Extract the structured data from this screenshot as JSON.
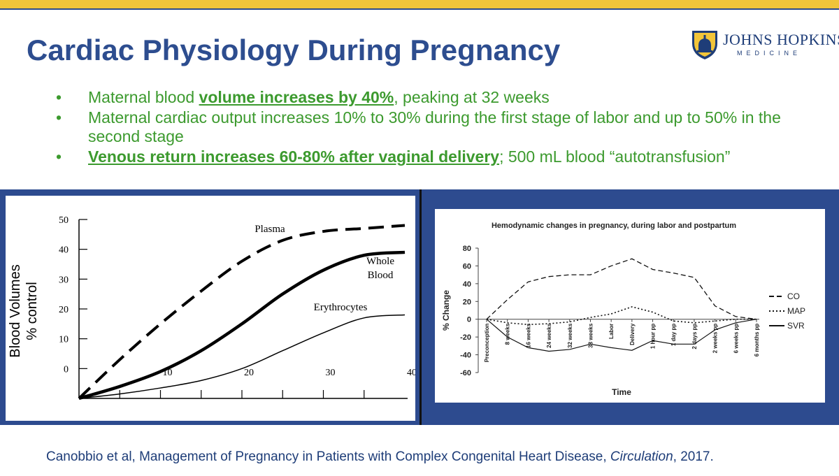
{
  "slide": {
    "title": "Cardiac Physiology During Pregnancy",
    "logo": {
      "name": "JOHNS HOPKINS",
      "subtitle": "MEDICINE"
    },
    "bullets": [
      {
        "bullet": "•",
        "pre": "Maternal blood ",
        "emph": "volume increases by 40%",
        "post": ", peaking at 32 weeks"
      },
      {
        "bullet": "•",
        "pre": "Maternal cardiac output increases 10% to 30% during the first stage of labor and up to 50% in the second stage",
        "emph": "",
        "post": ""
      },
      {
        "bullet": "•",
        "pre": "",
        "emph": "Venous return increases 60-80% after vaginal delivery",
        "post": "; 500 mL blood “autotransfusion”"
      }
    ],
    "citation": {
      "pre": "Canobbio et al, Management of Pregnancy in Patients with Complex Congenital Heart Disease, ",
      "journal": "Circulation",
      "post": ", 2017."
    }
  },
  "colors": {
    "title": "#2d4d8f",
    "bullet_text": "#3c9a2e",
    "panel": "#2d4b8f",
    "top_bar": "#f0c43a"
  },
  "chart_data": [
    {
      "type": "line",
      "title": "",
      "ylabel": "Blood Volumes % control",
      "xlabel": "",
      "xlim": [
        0,
        40
      ],
      "ylim": [
        -10,
        50
      ],
      "y_ticks": [
        0,
        10,
        20,
        30,
        40,
        50
      ],
      "x_ticks": [
        10,
        20,
        30,
        40
      ],
      "series": [
        {
          "name": "Plasma",
          "style": "dashed",
          "x": [
            0,
            5,
            10,
            15,
            20,
            25,
            30,
            35,
            40
          ],
          "values": [
            -10,
            3,
            15,
            26,
            36,
            43,
            46,
            47,
            48
          ]
        },
        {
          "name": "Whole Blood",
          "style": "thick",
          "x": [
            0,
            5,
            10,
            15,
            20,
            25,
            30,
            35,
            40
          ],
          "values": [
            -10,
            -6,
            -1,
            6,
            15,
            25,
            33,
            38,
            39
          ]
        },
        {
          "name": "Erythrocytes",
          "style": "thin",
          "x": [
            0,
            5,
            10,
            15,
            20,
            25,
            30,
            35,
            40
          ],
          "values": [
            -10,
            -8.5,
            -6.5,
            -4,
            0,
            6,
            12,
            17,
            18
          ]
        }
      ],
      "labels": {
        "plasma": "Plasma",
        "whole1": "Whole",
        "whole2": "Blood",
        "erythro": "Erythrocytes"
      }
    },
    {
      "type": "line",
      "title": "Hemodynamic changes in pregnancy, during labor and postpartum",
      "xlabel": "Time",
      "ylabel": "% Change",
      "ylim": [
        -60,
        80
      ],
      "y_ticks": [
        80,
        60,
        40,
        20,
        0,
        -20,
        -40,
        -60
      ],
      "categories": [
        "Preconception",
        "8 weeks",
        "16 weeks",
        "24 weeks",
        "32 weeks",
        "38 weeks",
        "Labor",
        "Delivery",
        "1 hour pp",
        "1 day pp",
        "2 days pp",
        "2 weeks pp",
        "6 weeks pp",
        "6 months pp"
      ],
      "series": [
        {
          "name": "CO",
          "style": "dashed",
          "values": [
            0,
            22,
            42,
            48,
            50,
            50,
            60,
            68,
            56,
            52,
            47,
            15,
            3,
            0
          ]
        },
        {
          "name": "MAP",
          "style": "dotted",
          "values": [
            0,
            -4,
            -6,
            -5,
            -3,
            2,
            6,
            14,
            8,
            -2,
            -4,
            -2,
            0,
            0
          ]
        },
        {
          "name": "SVR",
          "style": "solid",
          "values": [
            0,
            -20,
            -32,
            -36,
            -34,
            -28,
            -32,
            -35,
            -24,
            -28,
            -28,
            -12,
            -4,
            0
          ]
        }
      ]
    }
  ]
}
